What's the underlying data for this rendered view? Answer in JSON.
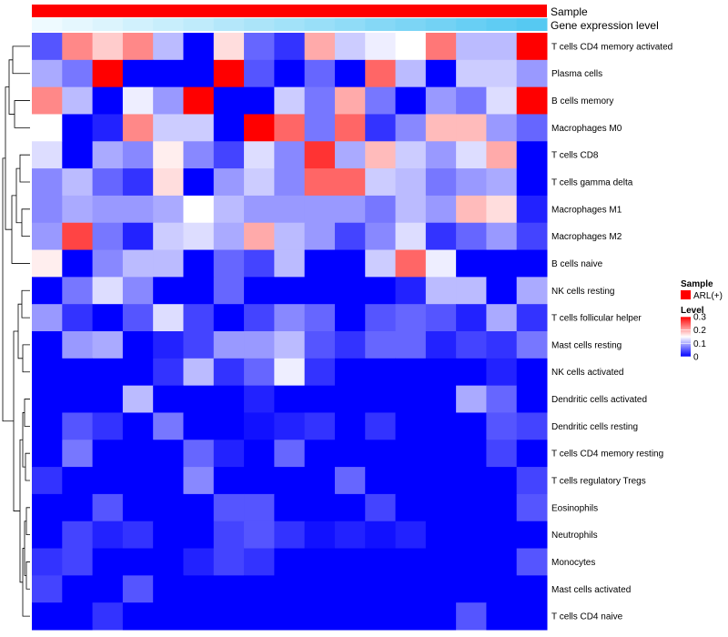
{
  "chart_data": {
    "type": "heatmap",
    "annotation_rows": [
      {
        "name": "Sample",
        "legend_title": "Sample",
        "legend_entries": [
          {
            "label": "ARL(+)",
            "color": "#ff0000"
          }
        ]
      },
      {
        "name": "Gene expression level"
      }
    ],
    "legend": {
      "title": "Level",
      "ticks": [
        "0",
        "0.1",
        "0.2",
        "0.3"
      ],
      "tick_values": [
        0,
        0.1,
        0.2,
        0.3
      ],
      "range": [
        0,
        0.3
      ],
      "colors": {
        "low": "#0000ff",
        "mid": "#ffffff",
        "high": "#ff0000"
      },
      "placement": "right"
    },
    "columns": 17,
    "rows": [
      {
        "label": "T cells CD4 memory activated",
        "values": [
          0.05,
          0.22,
          0.18,
          0.22,
          0.11,
          0.0,
          0.17,
          0.06,
          0.03,
          0.2,
          0.12,
          0.14,
          0.15,
          0.23,
          0.11,
          0.11,
          0.3
        ]
      },
      {
        "label": "Plasma cells",
        "values": [
          0.1,
          0.07,
          0.3,
          0.0,
          0.0,
          0.0,
          0.3,
          0.05,
          0.0,
          0.06,
          0.0,
          0.24,
          0.11,
          0.0,
          0.12,
          0.12,
          0.09
        ]
      },
      {
        "label": "B cells memory",
        "values": [
          0.22,
          0.11,
          0.0,
          0.14,
          0.09,
          0.3,
          0.0,
          0.0,
          0.12,
          0.07,
          0.2,
          0.07,
          0.0,
          0.09,
          0.07,
          0.13,
          0.3
        ]
      },
      {
        "label": "Macrophages M0",
        "values": [
          0.15,
          0.0,
          0.02,
          0.22,
          0.12,
          0.12,
          0.0,
          0.3,
          0.24,
          0.07,
          0.24,
          0.03,
          0.08,
          0.19,
          0.19,
          0.09,
          0.06
        ]
      },
      {
        "label": "T cells CD8",
        "values": [
          0.13,
          0.0,
          0.1,
          0.08,
          0.16,
          0.08,
          0.04,
          0.13,
          0.08,
          0.27,
          0.1,
          0.19,
          0.12,
          0.09,
          0.13,
          0.2,
          0.0
        ]
      },
      {
        "label": "T cells gamma delta",
        "values": [
          0.08,
          0.11,
          0.06,
          0.03,
          0.17,
          0.0,
          0.09,
          0.12,
          0.08,
          0.24,
          0.24,
          0.12,
          0.11,
          0.07,
          0.09,
          0.1,
          0.0
        ]
      },
      {
        "label": "Macrophages M1",
        "values": [
          0.08,
          0.1,
          0.09,
          0.09,
          0.1,
          0.15,
          0.11,
          0.09,
          0.09,
          0.09,
          0.09,
          0.07,
          0.11,
          0.09,
          0.19,
          0.17,
          0.02
        ]
      },
      {
        "label": "Macrophages M2",
        "values": [
          0.09,
          0.26,
          0.07,
          0.02,
          0.12,
          0.13,
          0.1,
          0.2,
          0.11,
          0.09,
          0.04,
          0.08,
          0.13,
          0.03,
          0.06,
          0.09,
          0.04
        ]
      },
      {
        "label": "B cells naive",
        "values": [
          0.16,
          0.0,
          0.08,
          0.11,
          0.11,
          0.0,
          0.06,
          0.04,
          0.11,
          0.0,
          0.0,
          0.12,
          0.24,
          0.14,
          0.0,
          0.0,
          0.0
        ]
      },
      {
        "label": "NK cells resting",
        "values": [
          0.0,
          0.07,
          0.13,
          0.08,
          0.0,
          0.0,
          0.06,
          0.0,
          0.0,
          0.0,
          0.0,
          0.0,
          0.02,
          0.11,
          0.11,
          0.0,
          0.1
        ]
      },
      {
        "label": "T cells follicular helper",
        "values": [
          0.09,
          0.03,
          0.0,
          0.05,
          0.13,
          0.04,
          0.0,
          0.04,
          0.08,
          0.06,
          0.0,
          0.05,
          0.06,
          0.05,
          0.02,
          0.1,
          0.03
        ]
      },
      {
        "label": "Mast cells resting",
        "values": [
          0.0,
          0.09,
          0.1,
          0.0,
          0.02,
          0.04,
          0.09,
          0.09,
          0.11,
          0.05,
          0.03,
          0.06,
          0.06,
          0.02,
          0.04,
          0.03,
          0.07
        ]
      },
      {
        "label": "NK cells activated",
        "values": [
          0.0,
          0.0,
          0.0,
          0.0,
          0.03,
          0.11,
          0.03,
          0.06,
          0.14,
          0.03,
          0.0,
          0.0,
          0.0,
          0.0,
          0.0,
          0.02,
          0.0
        ]
      },
      {
        "label": "Dendritic cells activated",
        "values": [
          0.0,
          0.0,
          0.0,
          0.11,
          0.0,
          0.0,
          0.0,
          0.02,
          0.0,
          0.0,
          0.0,
          0.0,
          0.0,
          0.0,
          0.1,
          0.06,
          0.0
        ]
      },
      {
        "label": "Dendritic cells resting",
        "values": [
          0.0,
          0.05,
          0.03,
          0.0,
          0.07,
          0.0,
          0.0,
          0.01,
          0.02,
          0.03,
          0.0,
          0.03,
          0.0,
          0.0,
          0.0,
          0.05,
          0.04
        ]
      },
      {
        "label": "T cells CD4 memory resting",
        "values": [
          0.0,
          0.07,
          0.0,
          0.0,
          0.0,
          0.06,
          0.02,
          0.0,
          0.06,
          0.0,
          0.0,
          0.0,
          0.0,
          0.0,
          0.0,
          0.04,
          0.0
        ]
      },
      {
        "label": "T cells regulatory  Tregs",
        "values": [
          0.03,
          0.0,
          0.0,
          0.0,
          0.0,
          0.08,
          0.0,
          0.0,
          0.0,
          0.0,
          0.06,
          0.0,
          0.0,
          0.0,
          0.0,
          0.0,
          0.04
        ]
      },
      {
        "label": "Eosinophils",
        "values": [
          0.0,
          0.0,
          0.05,
          0.0,
          0.0,
          0.0,
          0.05,
          0.05,
          0.0,
          0.0,
          0.0,
          0.04,
          0.0,
          0.0,
          0.0,
          0.0,
          0.05
        ]
      },
      {
        "label": "Neutrophils",
        "values": [
          0.0,
          0.04,
          0.02,
          0.03,
          0.0,
          0.0,
          0.04,
          0.05,
          0.03,
          0.01,
          0.02,
          0.01,
          0.02,
          0.0,
          0.0,
          0.0,
          0.0
        ]
      },
      {
        "label": "Monocytes",
        "values": [
          0.03,
          0.04,
          0.0,
          0.0,
          0.0,
          0.02,
          0.04,
          0.03,
          0.0,
          0.0,
          0.0,
          0.0,
          0.0,
          0.0,
          0.0,
          0.0,
          0.05
        ]
      },
      {
        "label": "Mast cells activated",
        "values": [
          0.04,
          0.0,
          0.0,
          0.05,
          0.0,
          0.0,
          0.0,
          0.0,
          0.0,
          0.0,
          0.0,
          0.0,
          0.0,
          0.0,
          0.0,
          0.0,
          0.0
        ]
      },
      {
        "label": "T cells CD4 naive",
        "values": [
          0.0,
          0.0,
          0.03,
          0.0,
          0.0,
          0.0,
          0.0,
          0.0,
          0.0,
          0.0,
          0.0,
          0.0,
          0.0,
          0.0,
          0.05,
          0.0,
          0.0
        ]
      }
    ],
    "column_annotations": {
      "Sample": [
        "ARL(+)",
        "ARL(+)",
        "ARL(+)",
        "ARL(+)",
        "ARL(+)",
        "ARL(+)",
        "ARL(+)",
        "ARL(+)",
        "ARL(+)",
        "ARL(+)",
        "ARL(+)",
        "ARL(+)",
        "ARL(+)",
        "ARL(+)",
        "ARL(+)",
        "ARL(+)",
        "ARL(+)"
      ],
      "Gene expression level": [
        0.0,
        0.06,
        0.12,
        0.19,
        0.25,
        0.31,
        0.38,
        0.44,
        0.5,
        0.56,
        0.62,
        0.69,
        0.75,
        0.81,
        0.88,
        0.94,
        1.0
      ],
      "gene_expression_gradient": {
        "low": "#eefaff",
        "high": "#56c9f2"
      }
    },
    "row_dendrogram": "hierarchical clustering on left"
  }
}
